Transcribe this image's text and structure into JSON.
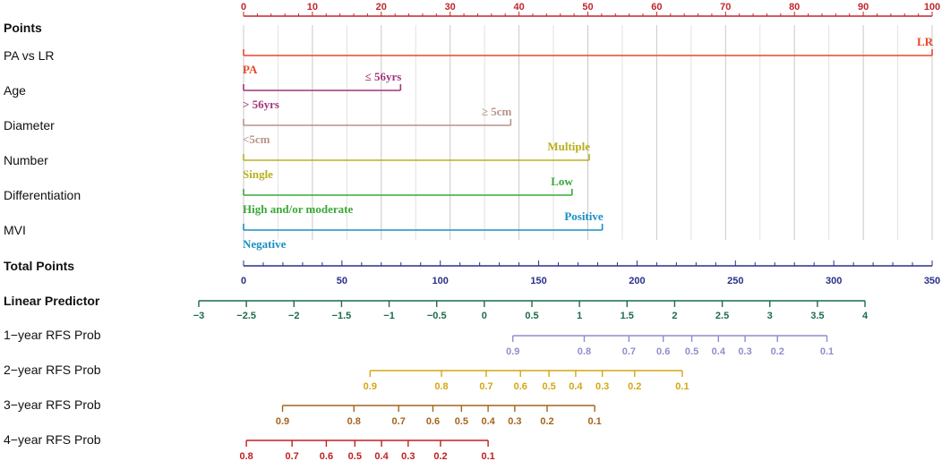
{
  "chart_data": {
    "type": "nomogram",
    "points_axis": {
      "label": "Points",
      "range": [
        0,
        100
      ],
      "major_ticks": [
        0,
        10,
        20,
        30,
        40,
        50,
        60,
        70,
        80,
        90,
        100
      ],
      "color": "#c0272d"
    },
    "variables": [
      {
        "name": "PA vs LR",
        "color": "#e8472a",
        "levels": [
          {
            "label": "PA",
            "points": 0
          },
          {
            "label": "LR",
            "points": 100
          }
        ]
      },
      {
        "name": "Age",
        "color": "#a3357a",
        "levels": [
          {
            "label": "> 56yrs",
            "points": 0
          },
          {
            "label": "≤ 56yrs",
            "points": 22.8
          }
        ]
      },
      {
        "name": "Diameter",
        "color": "#b8948a",
        "levels": [
          {
            "label": "<5cm",
            "points": 0
          },
          {
            "label": "≥ 5cm",
            "points": 38.8
          }
        ]
      },
      {
        "name": "Number",
        "color": "#b8b020",
        "levels": [
          {
            "label": "Single",
            "points": 0
          },
          {
            "label": "Multiple",
            "points": 50.2
          }
        ]
      },
      {
        "name": "Differentiation",
        "color": "#3aa83a",
        "levels": [
          {
            "label": "High and/or moderate",
            "points": 0
          },
          {
            "label": "Low",
            "points": 47.7
          }
        ]
      },
      {
        "name": "MVI",
        "color": "#1a8fc4",
        "levels": [
          {
            "label": "Negative",
            "points": 0
          },
          {
            "label": "Positive",
            "points": 52.1
          }
        ]
      }
    ],
    "total_points": {
      "label": "Total Points",
      "range": [
        0,
        350
      ],
      "major_ticks": [
        0,
        50,
        100,
        150,
        200,
        250,
        300,
        350
      ],
      "color": "#2b2f8a"
    },
    "linear_predictor": {
      "label": "Linear Predictor",
      "range": [
        -3,
        4
      ],
      "ticks": [
        -3,
        -2.5,
        -2,
        -1.5,
        -1,
        -0.5,
        0,
        0.5,
        1,
        1.5,
        2,
        2.5,
        3,
        3.5,
        4
      ],
      "tick_labels": [
        "−3",
        "−2.5",
        "−2",
        "−1.5",
        "−1",
        "−0.5",
        "0",
        "0.5",
        "1",
        "1.5",
        "2",
        "2.5",
        "3",
        "3.5",
        "4"
      ],
      "color": "#1e6b4a"
    },
    "probability_scales": [
      {
        "name": "1−year RFS Prob",
        "color": "#8f8ec9",
        "ticks": [
          {
            "label": "0.9",
            "lp": 0.3
          },
          {
            "label": "0.8",
            "lp": 1.05
          },
          {
            "label": "0.7",
            "lp": 1.52
          },
          {
            "label": "0.6",
            "lp": 1.88
          },
          {
            "label": "0.5",
            "lp": 2.18
          },
          {
            "label": "0.4",
            "lp": 2.46
          },
          {
            "label": "0.3",
            "lp": 2.74
          },
          {
            "label": "0.2",
            "lp": 3.08
          },
          {
            "label": "0.1",
            "lp": 3.6
          }
        ]
      },
      {
        "name": "2−year RFS Prob",
        "color": "#d4a615",
        "ticks": [
          {
            "label": "0.9",
            "lp": -1.2
          },
          {
            "label": "0.8",
            "lp": -0.45
          },
          {
            "label": "0.7",
            "lp": 0.02
          },
          {
            "label": "0.6",
            "lp": 0.38
          },
          {
            "label": "0.5",
            "lp": 0.68
          },
          {
            "label": "0.4",
            "lp": 0.96
          },
          {
            "label": "0.3",
            "lp": 1.24
          },
          {
            "label": "0.2",
            "lp": 1.58
          },
          {
            "label": "0.1",
            "lp": 2.08
          }
        ]
      },
      {
        "name": "3−year RFS Prob",
        "color": "#a4641e",
        "ticks": [
          {
            "label": "0.9",
            "lp": -2.12
          },
          {
            "label": "0.8",
            "lp": -1.37
          },
          {
            "label": "0.7",
            "lp": -0.9
          },
          {
            "label": "0.6",
            "lp": -0.54
          },
          {
            "label": "0.5",
            "lp": -0.24
          },
          {
            "label": "0.4",
            "lp": 0.04
          },
          {
            "label": "0.3",
            "lp": 0.32
          },
          {
            "label": "0.2",
            "lp": 0.66
          },
          {
            "label": "0.1",
            "lp": 1.16
          }
        ]
      },
      {
        "name": "4−year RFS Prob",
        "color": "#c02020",
        "ticks": [
          {
            "label": "0.8",
            "lp": -2.5
          },
          {
            "label": "0.7",
            "lp": -2.02
          },
          {
            "label": "0.6",
            "lp": -1.66
          },
          {
            "label": "0.5",
            "lp": -1.36
          },
          {
            "label": "0.4",
            "lp": -1.08
          },
          {
            "label": "0.3",
            "lp": -0.8
          },
          {
            "label": "0.2",
            "lp": -0.46
          },
          {
            "label": "0.1",
            "lp": 0.04
          }
        ]
      }
    ]
  }
}
